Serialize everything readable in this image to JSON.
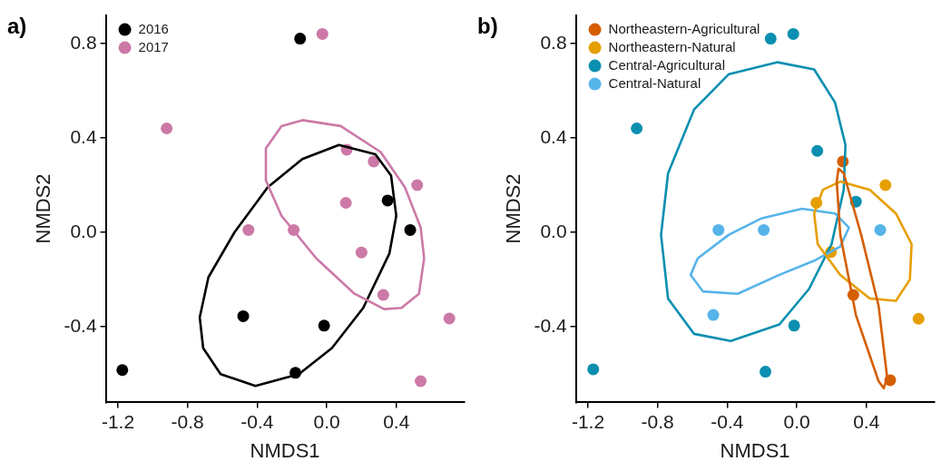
{
  "chart_data": [
    {
      "type": "scatter",
      "title": "a)",
      "xlabel": "NMDS1",
      "ylabel": "NMDS2",
      "xlim": [
        -1.27,
        0.79
      ],
      "ylim": [
        -0.72,
        0.92
      ],
      "xticks": [
        -1.2,
        -0.8,
        -0.4,
        {
          "value": 0,
          "label": "0.0"
        },
        0.4
      ],
      "yticks": [
        -0.4,
        {
          "value": 0,
          "label": "0.0"
        },
        0.4,
        0.8
      ],
      "grid": false,
      "legend": "top left",
      "marker": "circle",
      "series": [
        {
          "name": "2016",
          "color": "#000000",
          "x": [
            -0.153,
            0.35,
            0.48,
            -0.48,
            -0.015,
            -0.18,
            -1.175
          ],
          "values": [
            0.82,
            0.135,
            0.01,
            -0.355,
            -0.395,
            -0.595,
            -0.583
          ]
        },
        {
          "name": "2017",
          "color": "#cc79a7",
          "x": [
            -0.025,
            -0.92,
            0.115,
            0.27,
            0.52,
            0.11,
            -0.45,
            -0.19,
            0.2,
            0.325,
            0.705,
            0.54
          ],
          "values": [
            0.84,
            0.44,
            0.35,
            0.3,
            0.2,
            0.125,
            0.01,
            0.01,
            -0.085,
            -0.265,
            -0.365,
            -0.63
          ]
        }
      ]
    },
    {
      "type": "scatter",
      "title": "b)",
      "xlabel": "NMDS1",
      "ylabel": "NMDS2",
      "xlim": [
        -1.27,
        0.79
      ],
      "ylim": [
        -0.72,
        0.92
      ],
      "xticks": [
        -1.2,
        -0.8,
        -0.4,
        {
          "value": 0,
          "label": "0.0"
        },
        0.4
      ],
      "yticks": [
        -0.4,
        {
          "value": 0,
          "label": "0.0"
        },
        0.4,
        0.8
      ],
      "grid": false,
      "legend": "top left",
      "marker": "circle",
      "series": [
        {
          "name": "Northeastern-Agricultural",
          "color": "#d55e00",
          "x": [
            0.265,
            0.325,
            0.537
          ],
          "values": [
            0.3,
            -0.265,
            -0.626
          ]
        },
        {
          "name": "Northeastern-Natural",
          "color": "#e69f00",
          "x": [
            0.113,
            0.51,
            0.197,
            0.7
          ],
          "values": [
            0.125,
            0.2,
            -0.083,
            -0.366
          ]
        },
        {
          "name": "Central-Agricultural",
          "color": "#0a8fb0",
          "x": [
            -0.15,
            -0.02,
            -0.92,
            0.118,
            0.34,
            -0.015,
            -1.17,
            -0.18
          ],
          "values": [
            0.82,
            0.84,
            0.44,
            0.345,
            0.13,
            -0.395,
            -0.58,
            -0.59
          ]
        },
        {
          "name": "Central-Natural",
          "color": "#56b4e9",
          "x": [
            -0.45,
            -0.19,
            0.48,
            -0.48
          ],
          "values": [
            0.01,
            0.01,
            0.01,
            -0.35
          ]
        }
      ]
    }
  ]
}
